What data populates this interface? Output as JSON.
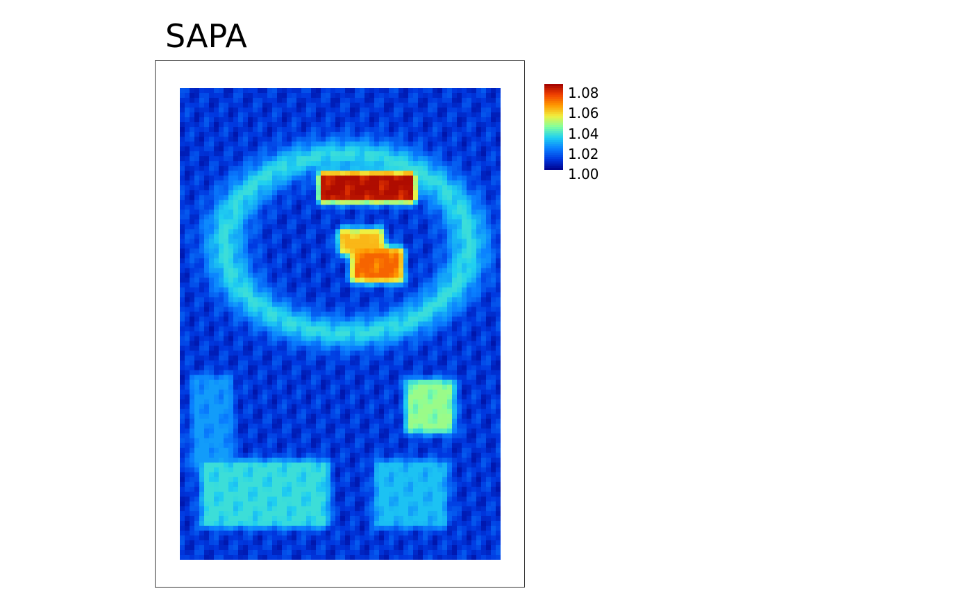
{
  "chart_data": {
    "type": "heatmap",
    "title": "SAPA",
    "colorbar": {
      "ticks": [
        "1.08",
        "1.06",
        "1.04",
        "1.02",
        "1.00"
      ],
      "range": [
        1.0,
        1.085
      ],
      "colormap": [
        "#00008b",
        "#0038e0",
        "#0a80ff",
        "#20d0f0",
        "#80ffa0",
        "#f0f040",
        "#ff9800",
        "#f04000",
        "#a00000"
      ]
    },
    "background_value": 1.01,
    "features": [
      {
        "label": "upper band",
        "x": [
          0.45,
          0.72
        ],
        "y": [
          0.19,
          0.23
        ],
        "value": 1.083
      },
      {
        "label": "central blob",
        "x": [
          0.55,
          0.68
        ],
        "y": [
          0.35,
          0.4
        ],
        "value": 1.07
      },
      {
        "label": "central blob small",
        "x": [
          0.51,
          0.62
        ],
        "y": [
          0.31,
          0.34
        ],
        "value": 1.06
      },
      {
        "label": "right lower arc",
        "x": [
          0.72,
          0.84
        ],
        "y": [
          0.63,
          0.72
        ],
        "value": 1.045
      },
      {
        "label": "ring",
        "cx": 0.52,
        "cy": 0.33,
        "rx": 0.38,
        "ry": 0.19,
        "value": 1.035
      },
      {
        "label": "lower left limb",
        "x": [
          0.08,
          0.45
        ],
        "y": [
          0.8,
          0.92
        ],
        "value": 1.035
      },
      {
        "label": "lower right limb",
        "x": [
          0.62,
          0.82
        ],
        "y": [
          0.8,
          0.92
        ],
        "value": 1.03
      },
      {
        "label": "left column",
        "x": [
          0.05,
          0.15
        ],
        "y": [
          0.62,
          0.8
        ],
        "value": 1.025
      }
    ]
  }
}
